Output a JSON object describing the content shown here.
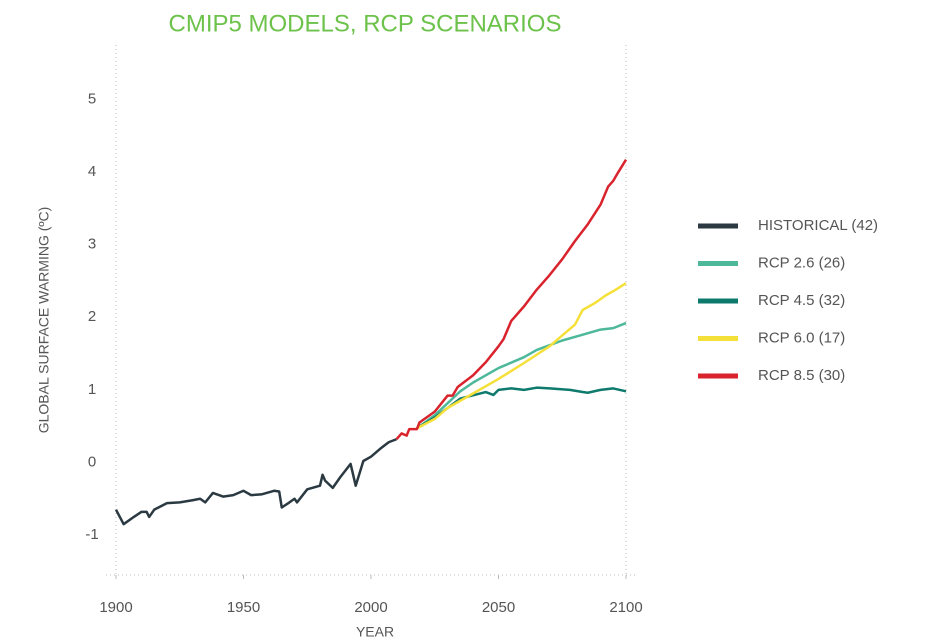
{
  "chart_data": {
    "type": "line",
    "title": "CMIP5 MODELS, RCP SCENARIOS",
    "xlabel": "YEAR",
    "ylabel": "GLOBAL SURFACE WARMING (ºC)",
    "xlim": [
      1900,
      2100
    ],
    "xticks": [
      1900,
      1950,
      2000,
      2050,
      2100
    ],
    "ylim": [
      -1.55,
      5.75
    ],
    "yticks": [
      -1,
      0,
      1,
      2,
      3,
      4,
      5
    ],
    "legend": "right",
    "series": [
      {
        "name": "HISTORICAL (42)",
        "color": "#2b3a42",
        "x": [
          1900,
          1903,
          1907,
          1910,
          1912,
          1913,
          1915,
          1920,
          1925,
          1930,
          1933,
          1935,
          1938,
          1942,
          1946,
          1950,
          1953,
          1957,
          1962,
          1964,
          1965,
          1968,
          1970,
          1971,
          1975,
          1980,
          1981,
          1982,
          1985,
          1988,
          1992,
          1994,
          1997,
          2000,
          2004,
          2007,
          2010
        ],
        "values": [
          -0.65,
          -0.85,
          -0.75,
          -0.68,
          -0.68,
          -0.75,
          -0.65,
          -0.56,
          -0.55,
          -0.52,
          -0.5,
          -0.55,
          -0.42,
          -0.47,
          -0.45,
          -0.39,
          -0.45,
          -0.44,
          -0.39,
          -0.4,
          -0.62,
          -0.55,
          -0.5,
          -0.55,
          -0.37,
          -0.32,
          -0.17,
          -0.25,
          -0.35,
          -0.2,
          -0.02,
          -0.32,
          0.02,
          0.08,
          0.2,
          0.28,
          0.32
        ]
      },
      {
        "name": "RCP 2.6 (26)",
        "color": "#4db89a",
        "x": [
          2018,
          2025,
          2035,
          2040,
          2050,
          2060,
          2065,
          2075,
          2082,
          2090,
          2095,
          2100
        ],
        "values": [
          0.47,
          0.65,
          0.98,
          1.1,
          1.3,
          1.45,
          1.55,
          1.68,
          1.75,
          1.83,
          1.85,
          1.92
        ]
      },
      {
        "name": "RCP 4.5 (32)",
        "color": "#0e7a6d",
        "x": [
          2018,
          2025,
          2035,
          2045,
          2048,
          2050,
          2055,
          2060,
          2065,
          2070,
          2078,
          2083,
          2085,
          2090,
          2095,
          2100
        ],
        "values": [
          0.47,
          0.62,
          0.88,
          0.97,
          0.93,
          1.0,
          1.02,
          1.0,
          1.03,
          1.02,
          1.0,
          0.97,
          0.96,
          1.0,
          1.02,
          0.98
        ]
      },
      {
        "name": "RCP 6.0 (17)",
        "color": "#f5e03a",
        "x": [
          2018,
          2025,
          2030,
          2040,
          2050,
          2060,
          2070,
          2080,
          2083,
          2088,
          2092,
          2096,
          2100
        ],
        "values": [
          0.47,
          0.6,
          0.75,
          0.95,
          1.15,
          1.37,
          1.6,
          1.9,
          2.1,
          2.2,
          2.3,
          2.38,
          2.47
        ]
      },
      {
        "name": "RCP 8.5 (30)",
        "color": "#d9232d",
        "x": [
          2010,
          2012,
          2014,
          2015,
          2018,
          2019,
          2025,
          2030,
          2032,
          2034,
          2040,
          2045,
          2050,
          2052,
          2055,
          2060,
          2065,
          2070,
          2075,
          2080,
          2085,
          2090,
          2093,
          2095,
          2097,
          2100
        ],
        "values": [
          0.32,
          0.4,
          0.37,
          0.46,
          0.46,
          0.55,
          0.7,
          0.92,
          0.92,
          1.04,
          1.2,
          1.38,
          1.6,
          1.7,
          1.95,
          2.15,
          2.38,
          2.58,
          2.8,
          3.05,
          3.28,
          3.55,
          3.8,
          3.88,
          4.0,
          4.17
        ]
      }
    ]
  }
}
